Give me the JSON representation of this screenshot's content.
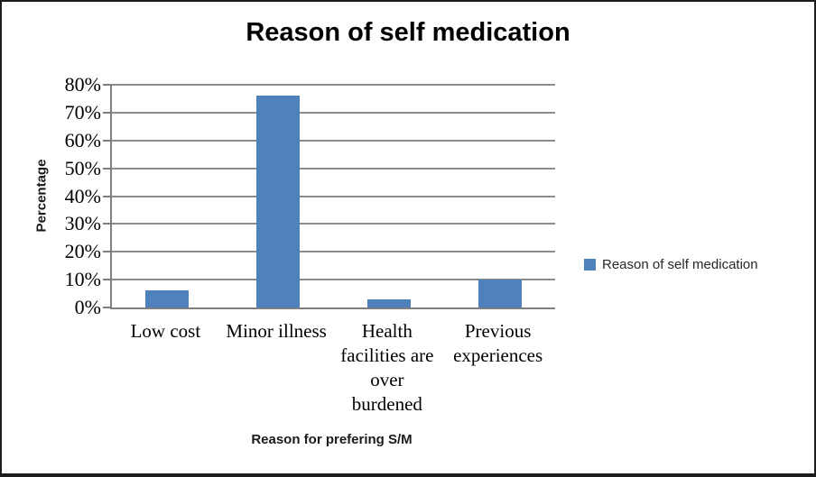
{
  "chart_data": {
    "type": "bar",
    "title": "Reason of self medication",
    "categories": [
      "Low cost",
      "Minor illness",
      "Health facilities are over burdened",
      "Previous experiences"
    ],
    "values": [
      6,
      76,
      3,
      10
    ],
    "series": [
      {
        "name": "Reason of self medication",
        "values": [
          6,
          76,
          3,
          10
        ]
      }
    ],
    "xlabel": "Reason for prefering S/M",
    "ylabel": "Percentage",
    "ylim": [
      0,
      80
    ],
    "ytick_step": 10,
    "ytick_suffix": "%",
    "ytick_labels": [
      "0%",
      "10%",
      "20%",
      "30%",
      "40%",
      "50%",
      "60%",
      "70%",
      "80%"
    ],
    "grid": true,
    "legend": {
      "position": "right",
      "label": "Reason of self medication"
    },
    "colors": {
      "bar": "#4F81BD",
      "gridline": "#8C8C8C",
      "axis": "#7F7F7F",
      "text": "#000000",
      "legend_text": "#262626"
    }
  }
}
